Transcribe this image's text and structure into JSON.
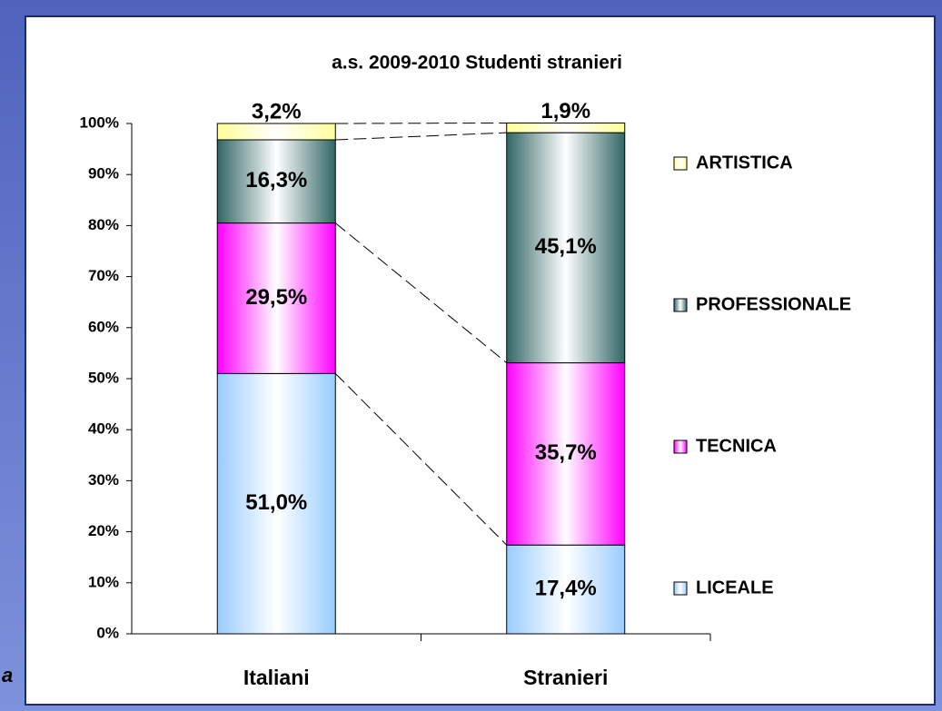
{
  "chart_data": {
    "type": "stacked_bar_100",
    "title": "a.s. 2009-2010 Studenti stranieri",
    "side_text": "a",
    "categories": [
      "Italiani",
      "Stranieri"
    ],
    "series": [
      {
        "name": "LICEALE",
        "color": "#99ccff",
        "values": [
          51.0,
          17.4
        ],
        "value_labels": [
          "51,0%",
          "17,4%"
        ]
      },
      {
        "name": "TECNICA",
        "color": "#ff00ff",
        "values": [
          29.5,
          35.7
        ],
        "value_labels": [
          "29,5%",
          "35,7%"
        ]
      },
      {
        "name": "PROFESSIONALE",
        "color": "#336666",
        "values": [
          16.3,
          45.1
        ],
        "value_labels": [
          "16,3%",
          "45,1%"
        ]
      },
      {
        "name": "ARTISTICA",
        "color": "#ffff99",
        "values": [
          3.2,
          1.9
        ],
        "value_labels": [
          "3,2%",
          "1,9%"
        ]
      }
    ],
    "ylim": [
      0,
      100
    ],
    "yticks": [
      {
        "value": 0,
        "label": "0%"
      },
      {
        "value": 10,
        "label": "10%"
      },
      {
        "value": 20,
        "label": "20%"
      },
      {
        "value": 30,
        "label": "30%"
      },
      {
        "value": 40,
        "label": "40%"
      },
      {
        "value": 50,
        "label": "50%"
      },
      {
        "value": 60,
        "label": "60%"
      },
      {
        "value": 70,
        "label": "70%"
      },
      {
        "value": 80,
        "label": "80%"
      },
      {
        "value": 90,
        "label": "90%"
      },
      {
        "value": 100,
        "label": "100%"
      }
    ],
    "grid": false,
    "legend": "right"
  }
}
